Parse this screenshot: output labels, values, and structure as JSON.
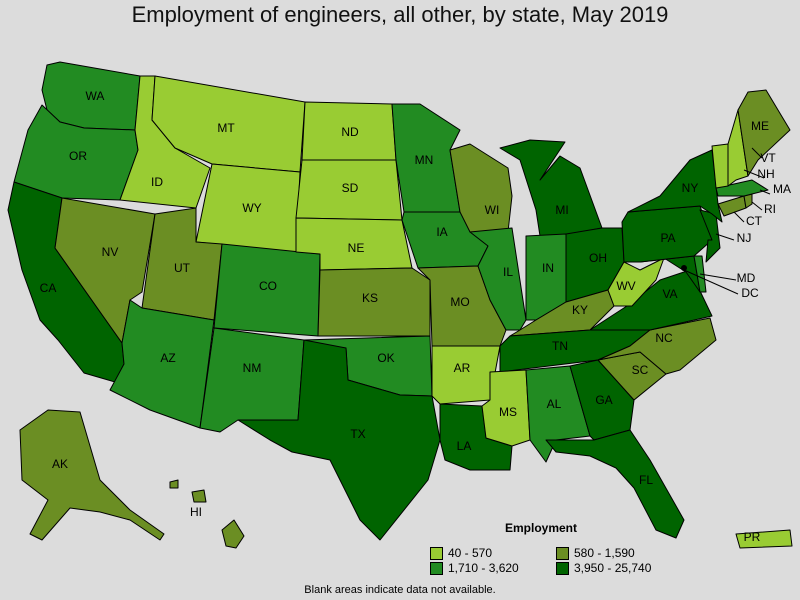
{
  "title": "Employment of engineers, all other, by state, May 2019",
  "legend": {
    "title": "Employment",
    "items": [
      {
        "label": "40 - 570",
        "color": "#99cc33"
      },
      {
        "label": "580 - 1,590",
        "color": "#6b8e23"
      },
      {
        "label": "1,710 - 3,620",
        "color": "#228b22"
      },
      {
        "label": "3,950 - 25,740",
        "color": "#006400"
      }
    ]
  },
  "note": "Blank areas indicate data not available.",
  "states": [
    {
      "abbr": "WA",
      "bin": 2
    },
    {
      "abbr": "OR",
      "bin": 2
    },
    {
      "abbr": "CA",
      "bin": 3
    },
    {
      "abbr": "ID",
      "bin": 0
    },
    {
      "abbr": "NV",
      "bin": 1
    },
    {
      "abbr": "MT",
      "bin": 0
    },
    {
      "abbr": "WY",
      "bin": 0
    },
    {
      "abbr": "UT",
      "bin": 1
    },
    {
      "abbr": "AZ",
      "bin": 2
    },
    {
      "abbr": "CO",
      "bin": 2
    },
    {
      "abbr": "NM",
      "bin": 2
    },
    {
      "abbr": "ND",
      "bin": 0
    },
    {
      "abbr": "SD",
      "bin": 0
    },
    {
      "abbr": "NE",
      "bin": 0
    },
    {
      "abbr": "KS",
      "bin": 1
    },
    {
      "abbr": "OK",
      "bin": 2
    },
    {
      "abbr": "TX",
      "bin": 3
    },
    {
      "abbr": "MN",
      "bin": 2
    },
    {
      "abbr": "IA",
      "bin": 2
    },
    {
      "abbr": "MO",
      "bin": 1
    },
    {
      "abbr": "AR",
      "bin": 0
    },
    {
      "abbr": "LA",
      "bin": 3
    },
    {
      "abbr": "WI",
      "bin": 1
    },
    {
      "abbr": "IL",
      "bin": 2
    },
    {
      "abbr": "MI",
      "bin": 3
    },
    {
      "abbr": "IN",
      "bin": 2
    },
    {
      "abbr": "OH",
      "bin": 3
    },
    {
      "abbr": "KY",
      "bin": 1
    },
    {
      "abbr": "TN",
      "bin": 3
    },
    {
      "abbr": "MS",
      "bin": 0
    },
    {
      "abbr": "AL",
      "bin": 2
    },
    {
      "abbr": "GA",
      "bin": 3
    },
    {
      "abbr": "FL",
      "bin": 3
    },
    {
      "abbr": "SC",
      "bin": 1
    },
    {
      "abbr": "NC",
      "bin": 1
    },
    {
      "abbr": "VA",
      "bin": 3
    },
    {
      "abbr": "WV",
      "bin": 0
    },
    {
      "abbr": "MD",
      "bin": 3
    },
    {
      "abbr": "DC",
      "bin": 3
    },
    {
      "abbr": "DE",
      "bin": 2
    },
    {
      "abbr": "PA",
      "bin": 3
    },
    {
      "abbr": "NJ",
      "bin": 3
    },
    {
      "abbr": "NY",
      "bin": 3
    },
    {
      "abbr": "CT",
      "bin": 1
    },
    {
      "abbr": "RI",
      "bin": 1
    },
    {
      "abbr": "MA",
      "bin": 2
    },
    {
      "abbr": "VT",
      "bin": 0
    },
    {
      "abbr": "NH",
      "bin": 0
    },
    {
      "abbr": "ME",
      "bin": 1
    },
    {
      "abbr": "AK",
      "bin": 1
    },
    {
      "abbr": "HI",
      "bin": 1
    },
    {
      "abbr": "PR",
      "bin": 0
    }
  ]
}
